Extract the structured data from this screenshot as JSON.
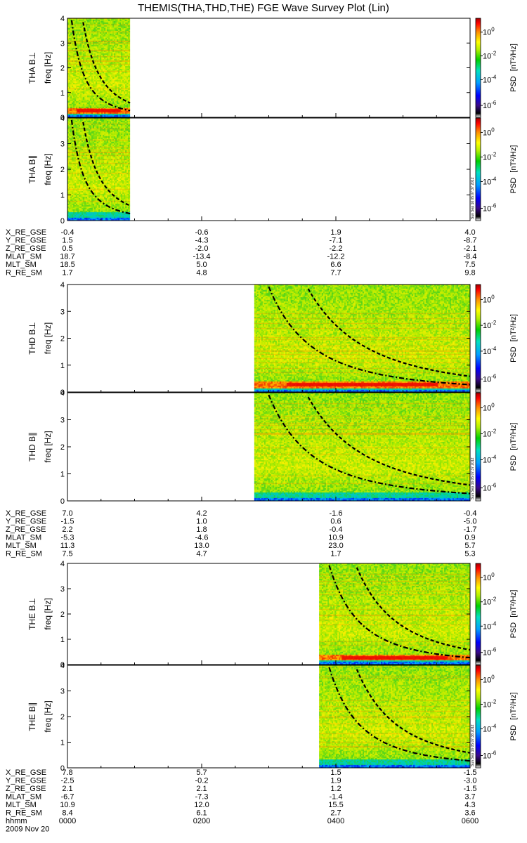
{
  "title": "THEMIS(THA,THD,THE) FGE Wave Survey Plot (Lin)",
  "colorbar": {
    "label_prefix": "PSD",
    "unit": "[nT²/Hz]",
    "ticks": [
      {
        "base": "10",
        "exp": "0"
      },
      {
        "base": "10",
        "exp": "-2"
      },
      {
        "base": "10",
        "exp": "-4"
      },
      {
        "base": "10",
        "exp": "-6"
      }
    ]
  },
  "freq_ticks": [
    "0",
    "1",
    "2",
    "3",
    "4"
  ],
  "stamps": [
    "Sun Sep 16 05:07:37 2012",
    "Sun Sep 16 05:07:37 2012",
    "Sun Sep 16 05:07:38 2012"
  ],
  "chart_data": [
    {
      "type": "heatmap",
      "probe": "THA",
      "panels": [
        {
          "component": "THA B⊥",
          "ylabel": "freq [Hz]"
        },
        {
          "component": "THA B∥",
          "ylabel": "freq [Hz]"
        }
      ],
      "time_range": [
        "0000",
        "0600"
      ],
      "data_coverage": [
        "0000",
        "0056"
      ],
      "ylim": [
        0,
        4
      ],
      "zlim": [
        "1e-6",
        "1e1"
      ],
      "zscale": "log",
      "ephemeris": [
        {
          "name": "X_RE_GSE",
          "values": [
            "-0.4",
            "-0.6",
            "1.9",
            "4.0"
          ]
        },
        {
          "name": "Y_RE_GSE",
          "values": [
            "1.5",
            "-4.3",
            "-7.1",
            "-8.7"
          ]
        },
        {
          "name": "Z_RE_GSE",
          "values": [
            "0.5",
            "-2.0",
            "-2.2",
            "-2.1"
          ]
        },
        {
          "name": "MLAT_SM",
          "values": [
            "18.7",
            "-13.4",
            "-12.2",
            "-8.4"
          ]
        },
        {
          "name": "MLT_SM",
          "values": [
            "18.5",
            "5.0",
            "6.6",
            "7.5"
          ]
        },
        {
          "name": "R_RE_SM",
          "values": [
            "1.7",
            "4.8",
            "7.7",
            "9.8"
          ]
        }
      ]
    },
    {
      "type": "heatmap",
      "probe": "THD",
      "panels": [
        {
          "component": "THD B⊥",
          "ylabel": "freq [Hz]"
        },
        {
          "component": "THD B∥",
          "ylabel": "freq [Hz]"
        }
      ],
      "time_range": [
        "0000",
        "0600"
      ],
      "data_coverage": [
        "0247",
        "0600"
      ],
      "ylim": [
        0,
        4
      ],
      "zlim": [
        "1e-6",
        "1e1"
      ],
      "zscale": "log",
      "ephemeris": [
        {
          "name": "X_RE_GSE",
          "values": [
            "7.0",
            "4.2",
            "-1.6",
            "-0.4"
          ]
        },
        {
          "name": "Y_RE_GSE",
          "values": [
            "-1.5",
            "1.0",
            "0.6",
            "-5.0"
          ]
        },
        {
          "name": "Z_RE_GSE",
          "values": [
            "2.2",
            "1.8",
            "-0.4",
            "-1.7"
          ]
        },
        {
          "name": "MLAT_SM",
          "values": [
            "-5.3",
            "-4.6",
            "10.9",
            "0.9"
          ]
        },
        {
          "name": "MLT_SM",
          "values": [
            "11.3",
            "13.0",
            "23.0",
            "5.7"
          ]
        },
        {
          "name": "R_RE_SM",
          "values": [
            "7.5",
            "4.7",
            "1.7",
            "5.3"
          ]
        }
      ]
    },
    {
      "type": "heatmap",
      "probe": "THE",
      "panels": [
        {
          "component": "THE B⊥",
          "ylabel": "freq [Hz]"
        },
        {
          "component": "THE B∥",
          "ylabel": "freq [Hz]"
        }
      ],
      "time_range": [
        "0000",
        "0600"
      ],
      "data_coverage": [
        "0345",
        "0600"
      ],
      "ylim": [
        0,
        4
      ],
      "zlim": [
        "1e-6",
        "1e1"
      ],
      "zscale": "log",
      "ephemeris": [
        {
          "name": "X_RE_GSE",
          "values": [
            "7.8",
            "5.7",
            "1.5",
            "-1.5"
          ]
        },
        {
          "name": "Y_RE_GSE",
          "values": [
            "-2.5",
            "-0.2",
            "1.9",
            "-3.0"
          ]
        },
        {
          "name": "Z_RE_GSE",
          "values": [
            "2.1",
            "2.1",
            "1.2",
            "-1.5"
          ]
        },
        {
          "name": "MLAT_SM",
          "values": [
            "-6.7",
            "-7.3",
            "-1.4",
            "3.7"
          ]
        },
        {
          "name": "MLT_SM",
          "values": [
            "10.9",
            "12.0",
            "15.5",
            "4.3"
          ]
        },
        {
          "name": "R_RE_SM",
          "values": [
            "8.4",
            "6.1",
            "2.7",
            "3.6"
          ]
        }
      ]
    }
  ],
  "time_axis": {
    "label": "hhmm",
    "ticks": [
      "0000",
      "0200",
      "0400",
      "0600"
    ],
    "date": "2009 Nov 20"
  }
}
